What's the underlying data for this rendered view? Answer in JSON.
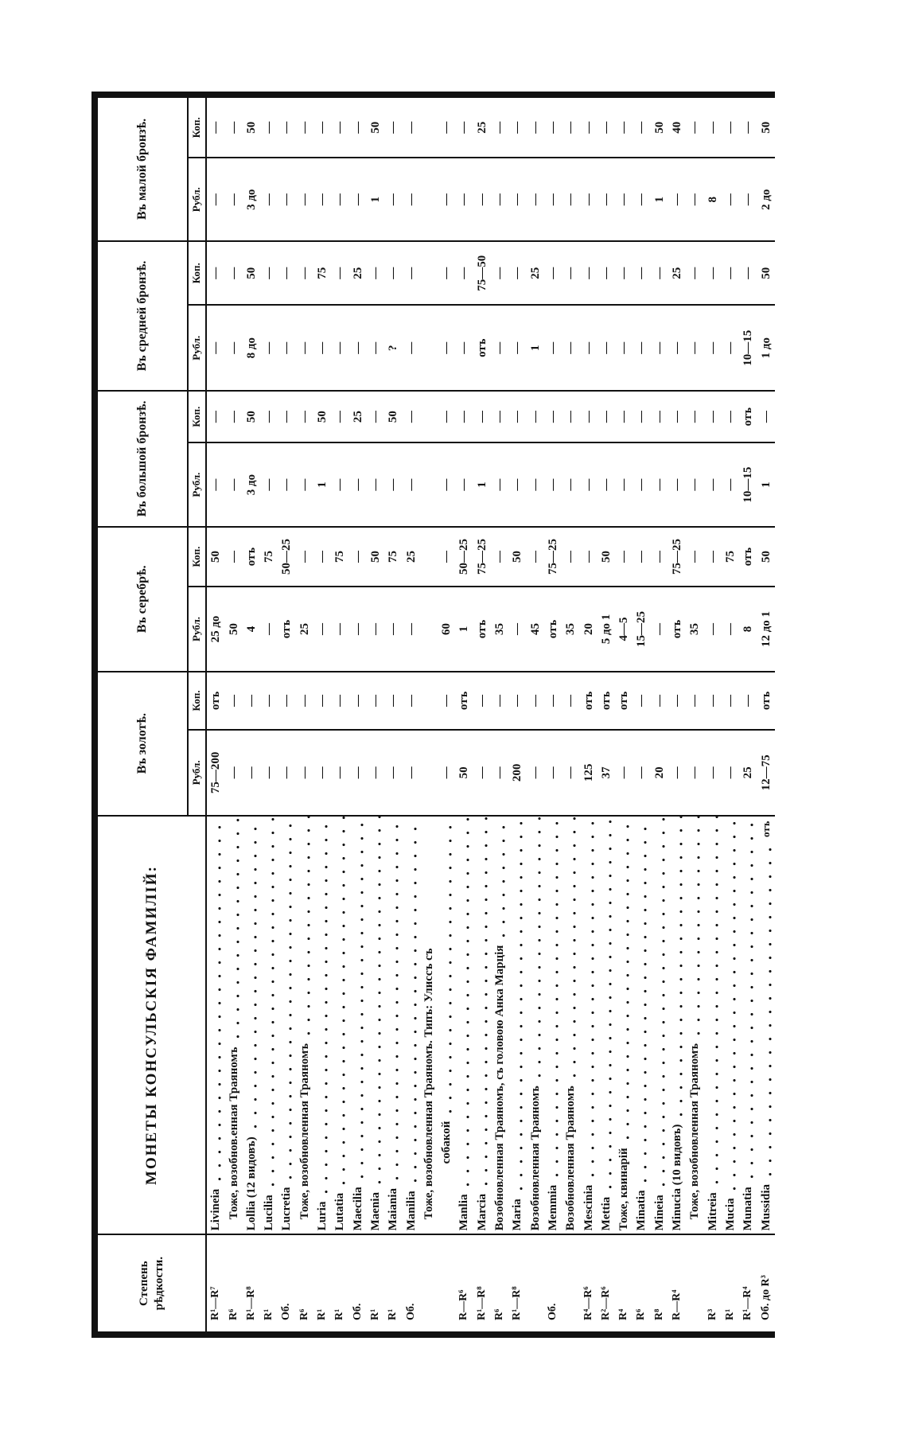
{
  "header": {
    "rarity": "Степень рѣдкости.",
    "title": "МОНЕТЫ КОНСУЛЬСКІЯ ФАМИЛІЙ:",
    "groups": [
      "Въ золотѣ.",
      "Въ серебрѣ.",
      "Въ большой бронзѣ.",
      "Въ средней бронзѣ.",
      "Въ малой бронзѣ."
    ],
    "rub": "Рубл.",
    "kop": "Коп."
  },
  "rows": [
    {
      "rarity": "R¹—R⁷",
      "name": "Livineia",
      "indent": false,
      "v": [
        "75—200",
        "отъ",
        "25 до",
        "50",
        "—",
        "—",
        "—",
        "—",
        "—",
        "—"
      ]
    },
    {
      "rarity": "R⁶",
      "name": "Тоже, возобнов.енная Траяномъ",
      "indent": true,
      "v": [
        "—",
        "—",
        "50",
        "—",
        "—",
        "—",
        "—",
        "—",
        "—",
        "—"
      ]
    },
    {
      "rarity": "R¹—R⁸",
      "name": "Lollia (12 видовъ)",
      "indent": false,
      "v": [
        "—",
        "—",
        "4",
        "отъ",
        "3 до",
        "50",
        "8 до",
        "50",
        "3 до",
        "50"
      ]
    },
    {
      "rarity": "R¹",
      "name": "Lucilia",
      "indent": false,
      "v": [
        "—",
        "—",
        "—",
        "75",
        "—",
        "—",
        "—",
        "—",
        "—",
        "—"
      ]
    },
    {
      "rarity": "Об.",
      "name": "Lucretia",
      "indent": false,
      "v": [
        "—",
        "—",
        "отъ",
        "50—25",
        "—",
        "—",
        "—",
        "—",
        "—",
        "—"
      ]
    },
    {
      "rarity": "R⁶",
      "name": "Тоже, возобновленная Траяномъ",
      "indent": true,
      "v": [
        "—",
        "—",
        "25",
        "—",
        "—",
        "—",
        "—",
        "—",
        "—",
        "—"
      ]
    },
    {
      "rarity": "R¹",
      "name": "Luria",
      "indent": false,
      "v": [
        "—",
        "—",
        "—",
        "—",
        "1",
        "50",
        "—",
        "75",
        "—",
        "—"
      ]
    },
    {
      "rarity": "R¹",
      "name": "Lutatia",
      "indent": false,
      "v": [
        "—",
        "—",
        "—",
        "75",
        "—",
        "—",
        "—",
        "—",
        "—",
        "—"
      ]
    },
    {
      "rarity": "Об.",
      "name": "Maecilia",
      "indent": false,
      "v": [
        "—",
        "—",
        "—",
        "—",
        "—",
        "25",
        "—",
        "25",
        "—",
        "—"
      ]
    },
    {
      "rarity": "R¹",
      "name": "Maenia",
      "indent": false,
      "v": [
        "—",
        "—",
        "—",
        "50",
        "—",
        "—",
        "—",
        "—",
        "1",
        "50"
      ]
    },
    {
      "rarity": "R¹",
      "name": "Maiania",
      "indent": false,
      "v": [
        "—",
        "—",
        "—",
        "75",
        "—",
        "50",
        "?",
        "—",
        "—",
        "—"
      ]
    },
    {
      "rarity": "Об.",
      "name": "Manilia",
      "indent": false,
      "v": [
        "—",
        "—",
        "—",
        "25",
        "—",
        "—",
        "—",
        "—",
        "—",
        "—"
      ]
    },
    {
      "rarity": "",
      "name": "Тоже, возобновленная Траяномъ. Типъ: Улиссъ съ",
      "name2": "собакой",
      "indent": true,
      "v": [
        "—",
        "—",
        "60",
        "—",
        "—",
        "—",
        "—",
        "—",
        "—",
        "—"
      ]
    },
    {
      "rarity": "R—R⁶",
      "name": "Manlia",
      "indent": false,
      "v": [
        "50",
        "отъ",
        "1",
        "50—25",
        "—",
        "—",
        "—",
        "—",
        "—",
        "—"
      ]
    },
    {
      "rarity": "R¹—R⁸",
      "name": "Marcia",
      "indent": false,
      "v": [
        "—",
        "—",
        "отъ",
        "75—25",
        "1",
        "—",
        "отъ",
        "75—50",
        "—",
        "25"
      ]
    },
    {
      "rarity": "R⁶",
      "name": "Возобновленная Траяномъ, съ головою Анка Марція",
      "indent": false,
      "v": [
        "—",
        "—",
        "35",
        "—",
        "—",
        "—",
        "—",
        "—",
        "—",
        "—"
      ]
    },
    {
      "rarity": "R¹—R⁸",
      "name": "Maria",
      "indent": false,
      "v": [
        "200",
        "—",
        "—",
        "50",
        "—",
        "—",
        "—",
        "—",
        "—",
        "—"
      ]
    },
    {
      "rarity": "",
      "name": "Возобновленная Траяномъ",
      "indent": false,
      "v": [
        "—",
        "—",
        "45",
        "—",
        "—",
        "—",
        "1",
        "25",
        "—",
        "—"
      ]
    },
    {
      "rarity": "Об.",
      "name": "Memmia",
      "indent": false,
      "v": [
        "—",
        "—",
        "отъ",
        "75—25",
        "—",
        "—",
        "—",
        "—",
        "—",
        "—"
      ]
    },
    {
      "rarity": "",
      "name": "Возобновленная Траяномъ",
      "indent": false,
      "v": [
        "—",
        "—",
        "35",
        "—",
        "—",
        "—",
        "—",
        "—",
        "—",
        "—"
      ]
    },
    {
      "rarity": "R⁴—R⁶",
      "name": "Mescinia",
      "indent": false,
      "v": [
        "125",
        "отъ",
        "20",
        "—",
        "—",
        "—",
        "—",
        "—",
        "—",
        "—"
      ]
    },
    {
      "rarity": "R²—R⁶",
      "name": "Mettia",
      "indent": false,
      "v": [
        "37",
        "отъ",
        "5 до 1",
        "50",
        "—",
        "—",
        "—",
        "—",
        "—",
        "—"
      ]
    },
    {
      "rarity": "R⁴",
      "name": "Тоже, квинарій",
      "indent": false,
      "v": [
        "—",
        "отъ",
        "4—5",
        "—",
        "—",
        "—",
        "—",
        "—",
        "—",
        "—"
      ]
    },
    {
      "rarity": "R⁶",
      "name": "Minatia",
      "indent": false,
      "v": [
        "—",
        "—",
        "15—25",
        "—",
        "—",
        "—",
        "—",
        "—",
        "—",
        "—"
      ]
    },
    {
      "rarity": "R⁸",
      "name": "Mineia",
      "indent": false,
      "v": [
        "20",
        "—",
        "—",
        "—",
        "—",
        "—",
        "—",
        "—",
        "1",
        "50"
      ]
    },
    {
      "rarity": "R—R⁴",
      "name": "Minucia (10 видовъ)",
      "indent": false,
      "v": [
        "—",
        "—",
        "отъ",
        "75—25",
        "—",
        "—",
        "—",
        "25",
        "—",
        "40"
      ]
    },
    {
      "rarity": "",
      "name": "Тоже, возобновленная Траяномъ",
      "indent": true,
      "v": [
        "—",
        "—",
        "35",
        "—",
        "—",
        "—",
        "—",
        "—",
        "—",
        "—"
      ]
    },
    {
      "rarity": "R³",
      "name": "Mitreia",
      "indent": false,
      "v": [
        "—",
        "—",
        "—",
        "—",
        "—",
        "—",
        "—",
        "—",
        "8",
        "—"
      ]
    },
    {
      "rarity": "R¹",
      "name": "Mucia",
      "indent": false,
      "v": [
        "—",
        "—",
        "—",
        "75",
        "—",
        "—",
        "—",
        "—",
        "—",
        "—"
      ]
    },
    {
      "rarity": "R¹—R⁴",
      "name": "Munatia",
      "indent": false,
      "v": [
        "25",
        "—",
        "8",
        "отъ",
        "10—15",
        "отъ",
        "10—15",
        "—",
        "—",
        "—"
      ]
    },
    {
      "rarity": "Об. до R³",
      "name": "Mussidia",
      "tail": "отъ",
      "indent": false,
      "v": [
        "12—75",
        "отъ",
        "12 до 1",
        "50",
        "1",
        "—",
        "1 до",
        "50",
        "2 до",
        "50"
      ]
    }
  ]
}
